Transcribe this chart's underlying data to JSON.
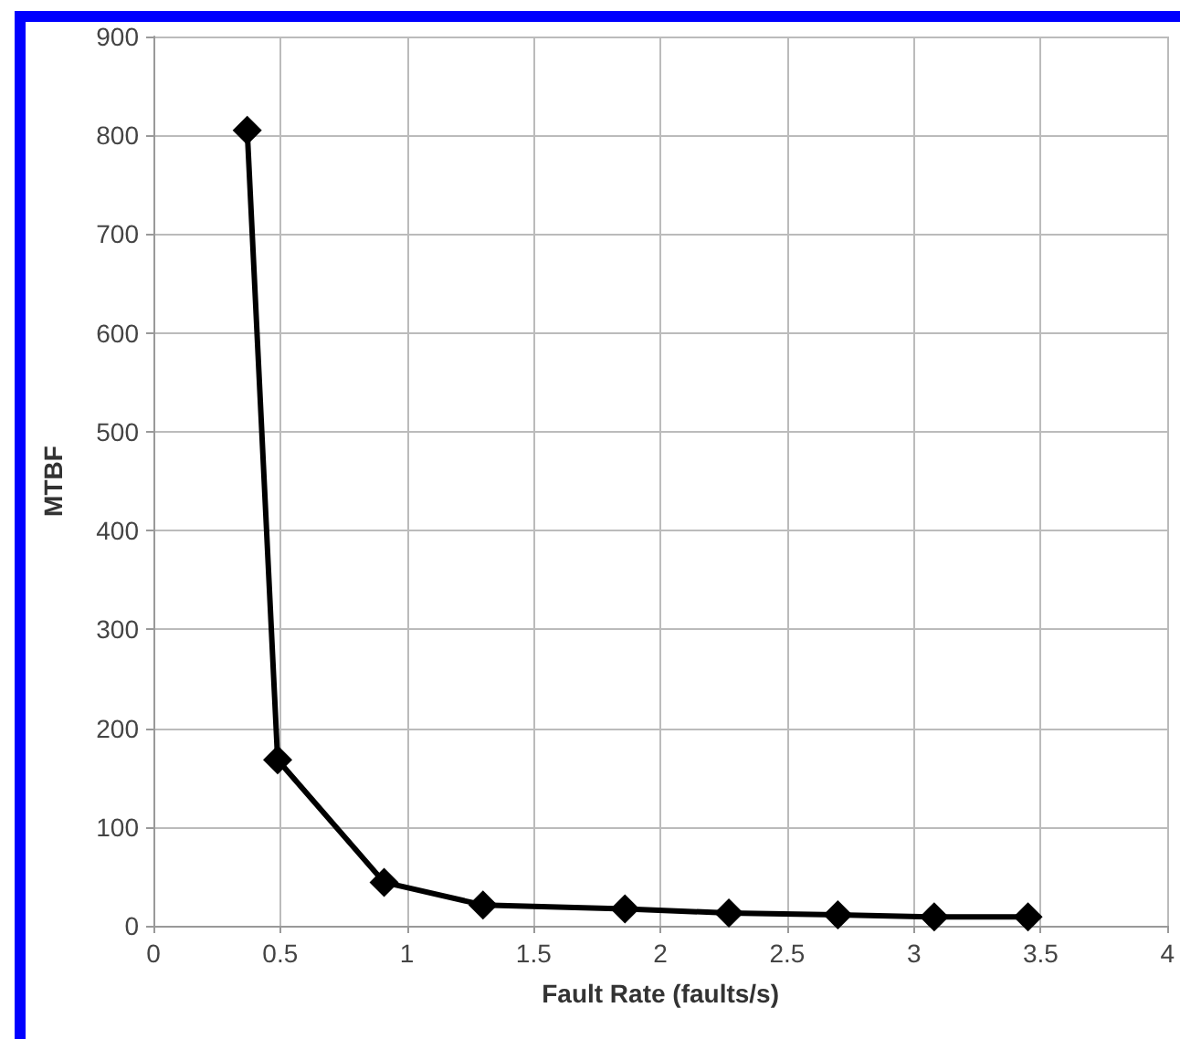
{
  "chart_data": {
    "type": "line",
    "xlabel": "Fault Rate (faults/s)",
    "ylabel": "MTBF",
    "x": [
      0.37,
      0.49,
      0.91,
      1.3,
      1.86,
      2.27,
      2.7,
      3.08,
      3.45
    ],
    "series": [
      {
        "color": "#000000",
        "values": [
          805,
          168,
          44,
          21,
          17,
          13,
          11,
          9,
          9
        ]
      }
    ],
    "xlim": [
      0,
      4
    ],
    "xticks": [
      0,
      0.5,
      1,
      1.5,
      2,
      2.5,
      3,
      3.5,
      4
    ],
    "ylim": [
      0,
      900
    ],
    "yticks": [
      0,
      100,
      200,
      300,
      400,
      500,
      600,
      700,
      800,
      900
    ],
    "grid": true,
    "marker": "diamond",
    "line_style": "solid"
  }
}
